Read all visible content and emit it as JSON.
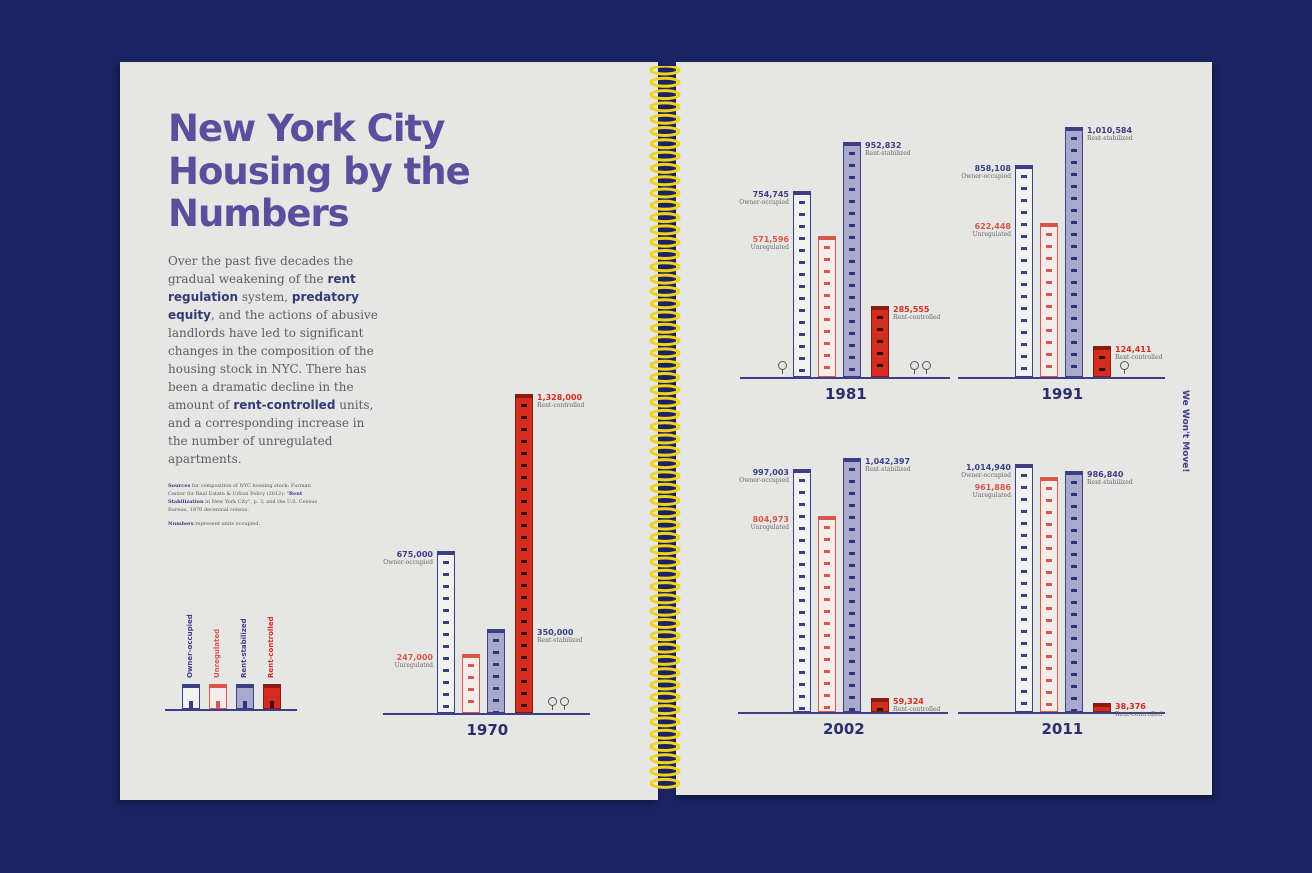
{
  "colors": {
    "background": "#1b2463",
    "title": "#5a4f9c",
    "owner_occupied": "#3b3f86",
    "unregulated": "#d9574a",
    "rent_stabilized": "#a9a9cc",
    "rent_controlled": "#d32d20",
    "spiral": "#f1d21c"
  },
  "left_page": {
    "title": "New York City Housing by the Numbers",
    "intro": [
      {
        "t": "Over the past five decades the gradual weakening of the "
      },
      {
        "t": "rent regulation",
        "b": true
      },
      {
        "t": " system, "
      },
      {
        "t": "predatory equity",
        "b": true
      },
      {
        "t": ", and the actions of abusive landlords have led to significant changes in the composition of the housing stock in NYC. There has been a dramatic decline in the amount of "
      },
      {
        "t": "rent-controlled",
        "b": true
      },
      {
        "t": " units, and a corresponding increase in the number of unregulated apartments."
      }
    ],
    "sources": [
      {
        "t": "Sources",
        "b": true
      },
      {
        "t": " for composition of NYC housing stock: Furman Center for Real Estate & Urban Policy (2012): \""
      },
      {
        "t": "Rent Stabilization",
        "b": true
      },
      {
        "t": " in New York City\", p. 3, and the U.S. Census Bureau, 1970 decennial census."
      }
    ],
    "numbers_note": [
      {
        "t": "Numbers",
        "b": true
      },
      {
        "t": " represent units occupied."
      }
    ],
    "legend": [
      "Owner-occupied",
      "Unregulated",
      "Rent-stabilized",
      "Rent-controlled"
    ]
  },
  "right_page": {
    "side_text": "We Won't Move!"
  },
  "chart_data": {
    "type": "bar",
    "categories": [
      "Owner-occupied",
      "Unregulated",
      "Rent-stabilized",
      "Rent-controlled"
    ],
    "panels": [
      {
        "year": "1970",
        "values": [
          675000,
          247000,
          350000,
          1328000
        ],
        "labels": [
          "675,000",
          "247,000",
          "350,000",
          "1,328,000"
        ]
      },
      {
        "year": "1981",
        "values": [
          754745,
          571596,
          952832,
          285555
        ],
        "labels": [
          "754,745",
          "571,596",
          "952,832",
          "285,555"
        ]
      },
      {
        "year": "1991",
        "values": [
          858108,
          622448,
          1010584,
          124411
        ],
        "labels": [
          "858,108",
          "622,448",
          "1,010,584",
          "124,411"
        ]
      },
      {
        "year": "2002",
        "values": [
          997003,
          804973,
          1042397,
          59324
        ],
        "labels": [
          "997,003",
          "804,973",
          "1,042,397",
          "59,324"
        ]
      },
      {
        "year": "2011",
        "values": [
          1014940,
          961886,
          986840,
          38376
        ],
        "labels": [
          "1,014,940",
          "961,886",
          "986,840",
          "38,376"
        ]
      }
    ]
  }
}
